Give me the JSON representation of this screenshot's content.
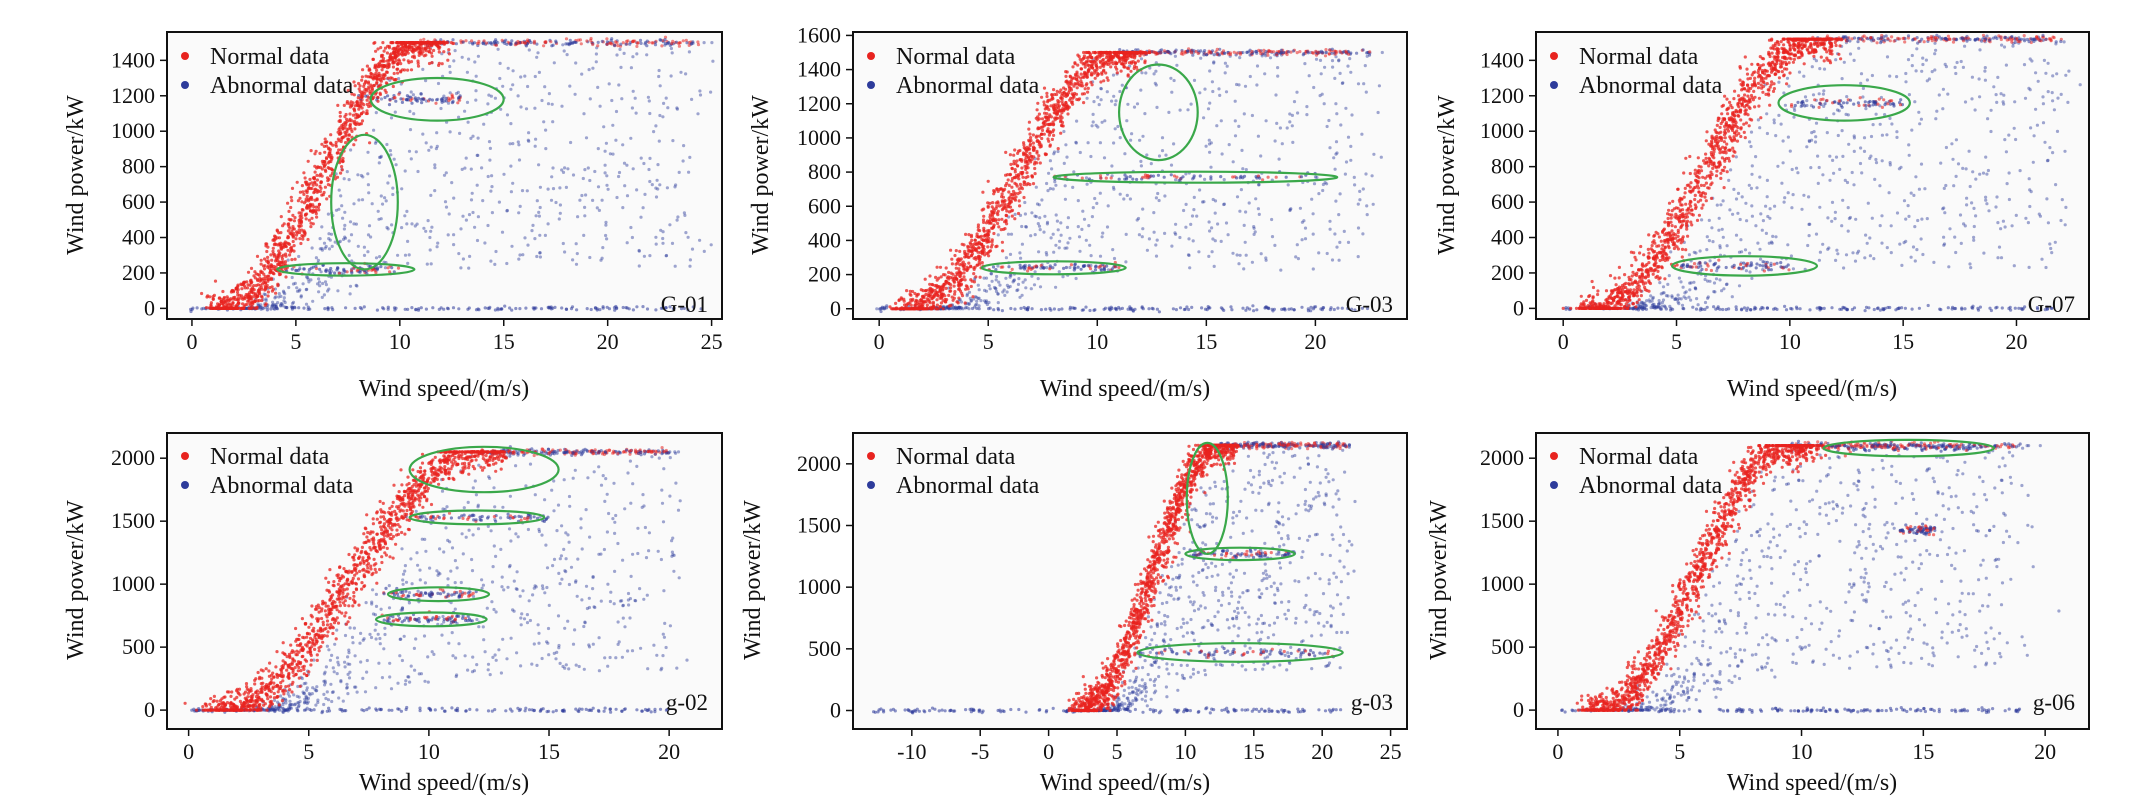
{
  "colors": {
    "normal": "#e8231f",
    "abnormal": "#2d3b9b",
    "ellipse": "#3aa84a",
    "axis": "#111111",
    "plot_bg": "#fafafa"
  },
  "legend": {
    "normal": "Normal data",
    "abnormal": "Abnormal data"
  },
  "chart_data": [
    {
      "type": "scatter",
      "title": "G-01",
      "xlabel": "Wind speed/(m/s)",
      "ylabel": "Wind power/kW",
      "xlim": [
        -1.2,
        25.5
      ],
      "ylim": [
        -60,
        1560
      ],
      "xticks": [
        0,
        5,
        10,
        15,
        20,
        25
      ],
      "yticks": [
        0,
        200,
        400,
        600,
        800,
        1000,
        1200,
        1400
      ],
      "xtick_labels": [
        "0",
        "5",
        "10",
        "15",
        "20",
        "25"
      ],
      "ytick_labels": [
        "0",
        "200",
        "400",
        "600",
        "800",
        "1000",
        "1200",
        "1400"
      ],
      "rated_power": 1500,
      "curve": {
        "cut_in": 1.5,
        "rated_speed": 11.0,
        "max_speed": 24.5,
        "spread": 1.0
      },
      "abnormal_bands": [
        {
          "power": 1180,
          "x_from": 8,
          "x_to": 13
        },
        {
          "power": 220,
          "x_from": 4.5,
          "x_to": 10
        }
      ],
      "ellipses": [
        {
          "cx": 11.8,
          "cy": 1180,
          "rx": 3.2,
          "ry": 120,
          "angle": 0
        },
        {
          "cx": 8.3,
          "cy": 600,
          "rx": 1.6,
          "ry": 380,
          "angle": 0
        },
        {
          "cx": 7.4,
          "cy": 220,
          "rx": 3.3,
          "ry": 35,
          "angle": 0
        }
      ]
    },
    {
      "type": "scatter",
      "title": "G-03",
      "xlabel": "Wind speed/(m/s)",
      "ylabel": "Wind power/kW",
      "xlim": [
        -1.2,
        24.2
      ],
      "ylim": [
        -60,
        1620
      ],
      "xticks": [
        0,
        5,
        10,
        15,
        20
      ],
      "yticks": [
        0,
        200,
        400,
        600,
        800,
        1000,
        1200,
        1400,
        1600
      ],
      "xtick_labels": [
        "0",
        "5",
        "10",
        "15",
        "20"
      ],
      "ytick_labels": [
        "0",
        "200",
        "400",
        "600",
        "800",
        "1000",
        "1200",
        "1400",
        "1600"
      ],
      "rated_power": 1500,
      "curve": {
        "cut_in": 1.5,
        "rated_speed": 11.0,
        "max_speed": 22.5,
        "spread": 1.0
      },
      "abnormal_bands": [
        {
          "power": 770,
          "x_from": 8,
          "x_to": 20
        },
        {
          "power": 240,
          "x_from": 5,
          "x_to": 11
        }
      ],
      "ellipses": [
        {
          "cx": 12.8,
          "cy": 1150,
          "rx": 1.8,
          "ry": 280,
          "angle": 0
        },
        {
          "cx": 14.5,
          "cy": 770,
          "rx": 6.5,
          "ry": 32,
          "angle": 0
        },
        {
          "cx": 8.0,
          "cy": 240,
          "rx": 3.3,
          "ry": 38,
          "angle": 0
        }
      ]
    },
    {
      "type": "scatter",
      "title": "G-07",
      "xlabel": "Wind speed/(m/s)",
      "ylabel": "Wind power/kW",
      "xlim": [
        -1.2,
        23.2
      ],
      "ylim": [
        -60,
        1560
      ],
      "xticks": [
        0,
        5,
        10,
        15,
        20
      ],
      "yticks": [
        0,
        200,
        400,
        600,
        800,
        1000,
        1200,
        1400
      ],
      "xtick_labels": [
        "0",
        "5",
        "10",
        "15",
        "20"
      ],
      "ytick_labels": [
        "0",
        "200",
        "400",
        "600",
        "800",
        "1000",
        "1200",
        "1400"
      ],
      "rated_power": 1520,
      "curve": {
        "cut_in": 1.5,
        "rated_speed": 11.0,
        "max_speed": 22.0,
        "spread": 1.0
      },
      "abnormal_bands": [
        {
          "power": 1160,
          "x_from": 10,
          "x_to": 15
        },
        {
          "power": 240,
          "x_from": 5,
          "x_to": 10
        }
      ],
      "ellipses": [
        {
          "cx": 12.4,
          "cy": 1160,
          "rx": 2.9,
          "ry": 100,
          "angle": 0
        },
        {
          "cx": 8.0,
          "cy": 240,
          "rx": 3.2,
          "ry": 55,
          "angle": 0
        }
      ]
    },
    {
      "type": "scatter",
      "title": "g-02",
      "xlabel": "Wind speed/(m/s)",
      "ylabel": "Wind power/kW",
      "xlim": [
        -0.9,
        22.2
      ],
      "ylim": [
        -150,
        2200
      ],
      "xticks": [
        0,
        5,
        10,
        15,
        20
      ],
      "yticks": [
        0,
        500,
        1000,
        1500,
        2000
      ],
      "xtick_labels": [
        "0",
        "5",
        "10",
        "15",
        "20"
      ],
      "ytick_labels": [
        "0",
        "500",
        "1000",
        "1500",
        "2000"
      ],
      "rated_power": 2050,
      "curve": {
        "cut_in": 1.5,
        "rated_speed": 12.0,
        "max_speed": 20.0,
        "spread": 1.0
      },
      "abnormal_bands": [
        {
          "power": 1530,
          "x_from": 9,
          "x_to": 15
        },
        {
          "power": 920,
          "x_from": 8,
          "x_to": 12
        },
        {
          "power": 720,
          "x_from": 8,
          "x_to": 12
        }
      ],
      "ellipses": [
        {
          "cx": 12.3,
          "cy": 1910,
          "rx": 3.1,
          "ry": 180,
          "angle": 0
        },
        {
          "cx": 12.0,
          "cy": 1530,
          "rx": 2.8,
          "ry": 55,
          "angle": 0
        },
        {
          "cx": 10.4,
          "cy": 920,
          "rx": 2.1,
          "ry": 55,
          "angle": 0
        },
        {
          "cx": 10.1,
          "cy": 720,
          "rx": 2.3,
          "ry": 55,
          "angle": 0
        }
      ]
    },
    {
      "type": "scatter",
      "title": "g-03",
      "xlabel": "Wind speed/(m/s)",
      "ylabel": "Wind power/kW",
      "xlim": [
        -14.3,
        26.2
      ],
      "ylim": [
        -150,
        2250
      ],
      "xticks": [
        -10,
        -5,
        0,
        5,
        10,
        15,
        20,
        25
      ],
      "yticks": [
        0,
        500,
        1000,
        1500,
        2000
      ],
      "xtick_labels": [
        "-10",
        "-5",
        "0",
        "5",
        "10",
        "15",
        "20",
        "25"
      ],
      "ytick_labels": [
        "0",
        "500",
        "1000",
        "1500",
        "2000"
      ],
      "rated_power": 2150,
      "curve": {
        "cut_in": 2.5,
        "rated_speed": 12.5,
        "max_speed": 22.0,
        "spread": 1.0
      },
      "abnormal_bands": [
        {
          "power": 1270,
          "x_from": 10,
          "x_to": 18
        },
        {
          "power": 470,
          "x_from": 6.5,
          "x_to": 21
        }
      ],
      "ellipses": [
        {
          "cx": 11.6,
          "cy": 1720,
          "rx": 1.5,
          "ry": 450,
          "angle": 0
        },
        {
          "cx": 14.0,
          "cy": 1270,
          "rx": 4.0,
          "ry": 50,
          "angle": 0
        },
        {
          "cx": 14.0,
          "cy": 470,
          "rx": 7.5,
          "ry": 75,
          "angle": 0
        }
      ]
    },
    {
      "type": "scatter",
      "title": "g-06",
      "xlabel": "Wind speed/(m/s)",
      "ylabel": "Wind power/kW",
      "xlim": [
        -0.9,
        21.8
      ],
      "ylim": [
        -150,
        2200
      ],
      "xticks": [
        0,
        5,
        10,
        15,
        20
      ],
      "yticks": [
        0,
        500,
        1000,
        1500,
        2000
      ],
      "xtick_labels": [
        "0",
        "5",
        "10",
        "15",
        "20"
      ],
      "ytick_labels": [
        "0",
        "500",
        "1000",
        "1500",
        "2000"
      ],
      "rated_power": 2100,
      "curve": {
        "cut_in": 1.8,
        "rated_speed": 9.5,
        "max_speed": 19.0,
        "spread": 0.8
      },
      "abnormal_bands": [
        {
          "power": 2080,
          "x_from": 11,
          "x_to": 17
        },
        {
          "power": 1430,
          "x_from": 14,
          "x_to": 15.5
        }
      ],
      "ellipses": [
        {
          "cx": 14.4,
          "cy": 2080,
          "rx": 3.5,
          "ry": 65,
          "angle": 0
        }
      ]
    }
  ]
}
